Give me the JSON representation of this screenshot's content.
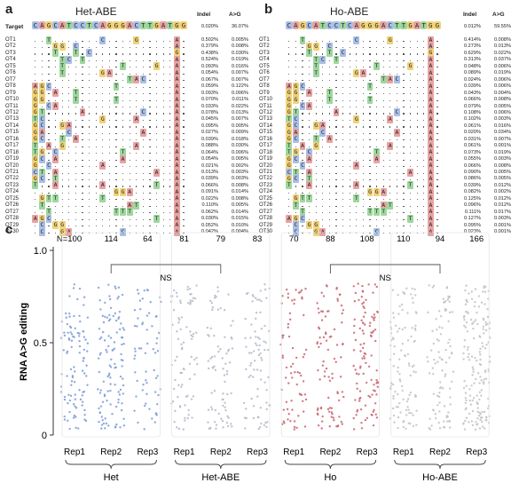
{
  "panels": {
    "a": {
      "letter": "a",
      "title": "Het-ABE",
      "target_label": "Target",
      "target_seq": "CAGCATCCTCAGGGACTTGATGG",
      "hdr_indel": "Indel",
      "hdr_atog": "A>G",
      "target_indel": "0.020%",
      "target_atog": "36.07%"
    },
    "b": {
      "letter": "b",
      "title": "Ho-ABE",
      "target_seq": "CAGCATCCTCAGGGACTTGATGG",
      "hdr_indel": "Indel",
      "hdr_atog": "A>G",
      "target_indel": "0.012%",
      "target_atog": "59.55%"
    },
    "c": {
      "letter": "c"
    }
  },
  "table_a": {
    "labels": [
      "OT1",
      "OT2",
      "OT3",
      "OT4",
      "OT5",
      "OT6",
      "OT7",
      "OT8",
      "OT9",
      "OT10",
      "OT11",
      "OT12",
      "OT13",
      "OT14",
      "OT15",
      "OT16",
      "OT17",
      "OT18",
      "OT19",
      "OT20",
      "OT21",
      "OT22",
      "OT23",
      "OT24",
      "OT25",
      "OT26",
      "OT27",
      "OT28",
      "OT29",
      "OT30"
    ],
    "indel": [
      "0.502%",
      "0.379%",
      "0.438%",
      "0.524%",
      "0.093%",
      "0.054%",
      "0.067%",
      "0.059%",
      "0.093%",
      "0.070%",
      "0.033%",
      "0.078%",
      "0.045%",
      "0.095%",
      "0.027%",
      "0.039%",
      "0.088%",
      "0.064%",
      "0.054%",
      "0.021%",
      "0.013%",
      "0.039%",
      "0.066%",
      "0.091%",
      "0.022%",
      "0.110%",
      "0.062%",
      "0.030%",
      "0.052%",
      "0.042%"
    ],
    "atog": [
      "0.005%",
      "0.008%",
      "0.030%",
      "0.019%",
      "0.016%",
      "0.007%",
      "0.007%",
      "0.122%",
      "0.006%",
      "0.011%",
      "0.022%",
      "0.013%",
      "0.007%",
      "0.005%",
      "0.009%",
      "0.018%",
      "0.030%",
      "0.006%",
      "0.005%",
      "0.002%",
      "0.003%",
      "0.003%",
      "0.008%",
      "0.014%",
      "0.008%",
      "0.005%",
      "0.014%",
      "0.015%",
      "0.010%",
      "0.004%"
    ]
  },
  "table_b": {
    "labels": [
      "OT1",
      "OT2",
      "OT3",
      "OT4",
      "OT5",
      "OT6",
      "OT7",
      "OT8",
      "OT9",
      "OT10",
      "OT11",
      "OT12",
      "OT13",
      "OT14",
      "OT15",
      "OT16",
      "OT17",
      "OT18",
      "OT19",
      "OT20",
      "OT21",
      "OT22",
      "OT23",
      "OT24",
      "OT25",
      "OT26",
      "OT27",
      "OT28",
      "OT29",
      "OT30"
    ],
    "indel": [
      "0.414%",
      "0.273%",
      "0.629%",
      "0.313%",
      "0.048%",
      "0.089%",
      "0.024%",
      "0.039%",
      "0.043%",
      "0.066%",
      "0.079%",
      "0.108%",
      "0.102%",
      "0.061%",
      "0.020%",
      "0.031%",
      "0.061%",
      "0.073%",
      "0.055%",
      "0.066%",
      "0.090%",
      "0.086%",
      "0.039%",
      "0.082%",
      "0.125%",
      "0.096%",
      "0.111%",
      "0.127%",
      "0.095%",
      "0.023%"
    ],
    "atog": [
      "0.008%",
      "0.013%",
      "0.022%",
      "0.037%",
      "0.006%",
      "0.019%",
      "0.006%",
      "0.006%",
      "0.004%",
      "0.008%",
      "0.005%",
      "0.006%",
      "0.003%",
      "0.016%",
      "0.034%",
      "0.007%",
      "0.001%",
      "0.019%",
      "0.003%",
      "0.008%",
      "0.005%",
      "0.005%",
      "0.012%",
      "0.002%",
      "0.012%",
      "0.012%",
      "0.017%",
      "0.003%",
      "0.001%",
      "0.001%"
    ]
  },
  "mismatches": [
    [
      [
        2,
        "T"
      ],
      [
        10,
        "C"
      ],
      [
        15,
        "G"
      ],
      [
        21,
        "A"
      ]
    ],
    [
      [
        3,
        "G"
      ],
      [
        4,
        "G"
      ],
      [
        6,
        "C"
      ],
      [
        21,
        "A"
      ]
    ],
    [
      [
        3,
        "T"
      ],
      [
        6,
        "T"
      ],
      [
        8,
        "C"
      ],
      [
        21,
        "G"
      ]
    ],
    [
      [
        4,
        "T"
      ],
      [
        5,
        "C"
      ],
      [
        7,
        "T"
      ],
      [
        21,
        "A"
      ]
    ],
    [
      [
        4,
        "T"
      ],
      [
        13,
        "T"
      ],
      [
        18,
        "G"
      ],
      [
        21,
        "A"
      ]
    ],
    [
      [
        4,
        "T"
      ],
      [
        10,
        "G"
      ],
      [
        11,
        "A"
      ],
      [
        21,
        "A"
      ]
    ],
    [
      [
        14,
        "T"
      ],
      [
        15,
        "A"
      ],
      [
        16,
        "C"
      ],
      [
        21,
        "A"
      ]
    ],
    [
      [
        0,
        "A"
      ],
      [
        1,
        "G"
      ],
      [
        2,
        "C"
      ],
      [
        12,
        "T"
      ],
      [
        21,
        "A"
      ]
    ],
    [
      [
        0,
        "G"
      ],
      [
        1,
        "G"
      ],
      [
        3,
        "A"
      ],
      [
        6,
        "T"
      ],
      [
        21,
        "A"
      ]
    ],
    [
      [
        0,
        "G"
      ],
      [
        1,
        "G"
      ],
      [
        6,
        "T"
      ],
      [
        12,
        "T"
      ],
      [
        21,
        "A"
      ]
    ],
    [
      [
        0,
        "G"
      ],
      [
        2,
        "C"
      ],
      [
        3,
        "A"
      ],
      [
        21,
        "A"
      ]
    ],
    [
      [
        0,
        "G"
      ],
      [
        1,
        "T"
      ],
      [
        7,
        "A"
      ],
      [
        16,
        "C"
      ],
      [
        21,
        "A"
      ]
    ],
    [
      [
        0,
        "T"
      ],
      [
        1,
        "C"
      ],
      [
        10,
        "G"
      ],
      [
        15,
        "A"
      ],
      [
        21,
        "A"
      ]
    ],
    [
      [
        0,
        "G"
      ],
      [
        1,
        "C"
      ],
      [
        4,
        "G"
      ],
      [
        5,
        "A"
      ],
      [
        21,
        "A"
      ]
    ],
    [
      [
        0,
        "G"
      ],
      [
        1,
        "A"
      ],
      [
        5,
        "C"
      ],
      [
        16,
        "A"
      ],
      [
        21,
        "A"
      ]
    ],
    [
      [
        0,
        "G"
      ],
      [
        1,
        "C"
      ],
      [
        4,
        "T"
      ],
      [
        6,
        "A"
      ],
      [
        21,
        "A"
      ]
    ],
    [
      [
        0,
        "T"
      ],
      [
        2,
        "A"
      ],
      [
        4,
        "G"
      ],
      [
        15,
        "A"
      ],
      [
        21,
        "A"
      ]
    ],
    [
      [
        0,
        "T"
      ],
      [
        1,
        "G"
      ],
      [
        3,
        "C"
      ],
      [
        13,
        "T"
      ],
      [
        21,
        "A"
      ]
    ],
    [
      [
        0,
        "G"
      ],
      [
        1,
        "C"
      ],
      [
        3,
        "A"
      ],
      [
        13,
        "A"
      ],
      [
        21,
        "A"
      ]
    ],
    [
      [
        0,
        "G"
      ],
      [
        2,
        "C"
      ],
      [
        10,
        "A"
      ],
      [
        21,
        "A"
      ]
    ],
    [
      [
        0,
        "C"
      ],
      [
        1,
        "T"
      ],
      [
        3,
        "A"
      ],
      [
        18,
        "A"
      ],
      [
        21,
        "A"
      ]
    ],
    [
      [
        0,
        "G"
      ],
      [
        1,
        "C"
      ],
      [
        3,
        "T"
      ],
      [
        21,
        "A"
      ]
    ],
    [
      [
        0,
        "T"
      ],
      [
        3,
        "A"
      ],
      [
        10,
        "A"
      ],
      [
        18,
        "T"
      ],
      [
        21,
        "A"
      ]
    ],
    [
      [
        12,
        "G"
      ],
      [
        13,
        "G"
      ],
      [
        14,
        "A"
      ],
      [
        21,
        "A"
      ]
    ],
    [
      [
        1,
        "G"
      ],
      [
        2,
        "T"
      ],
      [
        3,
        "T"
      ],
      [
        10,
        "T"
      ],
      [
        21,
        "A"
      ]
    ],
    [
      [
        1,
        "T"
      ],
      [
        14,
        "A"
      ],
      [
        15,
        "T"
      ],
      [
        21,
        "A"
      ]
    ],
    [
      [
        2,
        "T"
      ],
      [
        12,
        "T"
      ],
      [
        13,
        "T"
      ],
      [
        14,
        "T"
      ],
      [
        21,
        "A"
      ]
    ],
    [
      [
        0,
        "A"
      ],
      [
        1,
        "G"
      ],
      [
        2,
        "C"
      ],
      [
        18,
        "T"
      ],
      [
        21,
        "A"
      ]
    ],
    [
      [
        1,
        "C"
      ],
      [
        3,
        "G"
      ],
      [
        4,
        "G"
      ],
      [
        21,
        "A"
      ]
    ],
    [
      [
        1,
        "C"
      ],
      [
        4,
        "G"
      ],
      [
        5,
        "A"
      ],
      [
        13,
        "C"
      ],
      [
        21,
        "A"
      ]
    ]
  ],
  "colors": {
    "A": "#e8a3a3",
    "C": "#a9bfe6",
    "G": "#f0d27a",
    "T": "#9ed79e"
  },
  "chart_data": {
    "type": "scatter",
    "ylabel": "RNA A>G editing",
    "ylim": [
      0,
      1.0
    ],
    "yticks": [
      "0",
      "0.5",
      "1.0"
    ],
    "groups": [
      {
        "name": "Het",
        "reps": [
          "Rep1",
          "Rep2",
          "Rep3"
        ],
        "n": [
          "N=100",
          "114",
          "64"
        ],
        "color": "#7a9ad6"
      },
      {
        "name": "Het-ABE",
        "reps": [
          "Rep1",
          "Rep2",
          "Rep3"
        ],
        "n": [
          "81",
          "79",
          "83"
        ],
        "color": "#b4b9c8"
      },
      {
        "name": "Ho",
        "reps": [
          "Rep1",
          "Rep2",
          "Rep3"
        ],
        "n": [
          "70",
          "88",
          "108"
        ],
        "color": "#c9626c"
      },
      {
        "name": "Ho-ABE",
        "reps": [
          "Rep1",
          "Rep2",
          "Rep3"
        ],
        "n": [
          "110",
          "94",
          "166"
        ],
        "color": "#c2c2c2"
      }
    ],
    "point_counts": [
      100,
      114,
      64,
      81,
      79,
      83,
      70,
      88,
      108,
      110,
      94,
      166
    ],
    "y_range_observed": [
      0.03,
      0.82
    ],
    "annotations": [
      "NS",
      "NS"
    ]
  }
}
